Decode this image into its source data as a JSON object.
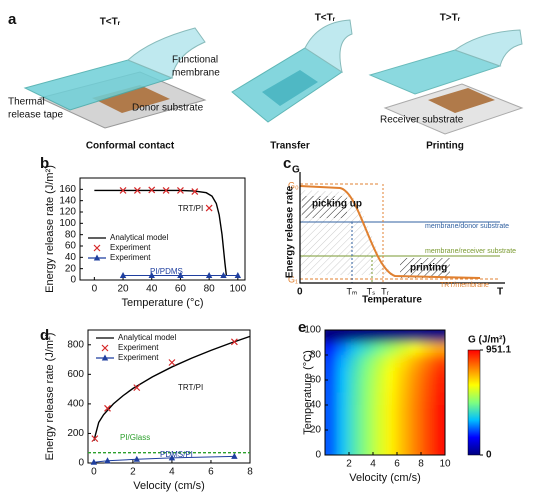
{
  "diagram_a": {
    "panel": "a",
    "labels": [
      "T<Tᵣ",
      "Functional",
      "membrane",
      "Thermal",
      "release tape",
      "Donor substrate",
      "Conformal contact",
      "T<Tᵣ",
      "Transfer",
      "T>Tᵣ",
      "Receiver substrate",
      "Printing"
    ]
  },
  "diagram_c": {
    "panel": "c",
    "labels": [
      "G",
      "G₀",
      "G₁",
      "Energy release rate",
      "Temperature",
      "0",
      "T",
      "Tₘ",
      "Tₛ",
      "Tᵣ",
      "picking up",
      "printing",
      "membrane/donor substrate",
      "membrane/receiver substrate",
      "TRT/membrane"
    ]
  },
  "chart_data": [
    {
      "type": "line",
      "panel": "b",
      "xlabel": "Temperature (°c)",
      "ylabel": "Energy release rate (J/m²)",
      "xlim": [
        -10,
        105
      ],
      "xticks": [
        0,
        20,
        40,
        60,
        80,
        100
      ],
      "ylim": [
        0,
        180
      ],
      "yticks": [
        0,
        20,
        40,
        60,
        80,
        100,
        120,
        140,
        160
      ],
      "annotations": [
        "TRT/PI",
        "PI/PDMS"
      ],
      "series": [
        {
          "name": "Analytical model",
          "color": "#000000",
          "line": true,
          "marker": "none",
          "x": [
            0,
            20,
            40,
            60,
            70,
            78,
            82,
            85,
            87,
            89,
            91,
            92
          ],
          "values": [
            158,
            158,
            158,
            158,
            157,
            154,
            148,
            135,
            115,
            80,
            30,
            8
          ]
        },
        {
          "name": "Experiment",
          "color": "#d62728",
          "line": false,
          "marker": "x",
          "x": [
            20,
            30,
            40,
            50,
            60,
            70,
            80
          ],
          "values": [
            158,
            158,
            159,
            158,
            158,
            156,
            127
          ]
        },
        {
          "name": "Experiment",
          "color": "#1f3f9f",
          "line": true,
          "marker": "triangle",
          "x": [
            20,
            40,
            60,
            80,
            90,
            100
          ],
          "values": [
            8,
            8,
            8,
            8,
            8,
            8
          ]
        }
      ]
    },
    {
      "type": "line",
      "panel": "d",
      "xlabel": "Velocity (cm/s)",
      "ylabel": "Energy release rate (J/m²)",
      "xlim": [
        -0.3,
        8
      ],
      "xticks": [
        0,
        2,
        4,
        6,
        8
      ],
      "ylim": [
        0,
        900
      ],
      "yticks": [
        0,
        200,
        400,
        600,
        800
      ],
      "annotations": [
        "TRT/PI",
        "PI/Glass",
        "PDMS/PI"
      ],
      "series": [
        {
          "name": "Analytical model",
          "color": "#000000",
          "line": true,
          "marker": "none",
          "x": [
            0,
            0.25,
            0.5,
            1,
            1.5,
            2,
            3,
            4,
            5,
            6,
            7,
            8
          ],
          "values": [
            150,
            275,
            327,
            400,
            456,
            504,
            583,
            650,
            709,
            762,
            811,
            857
          ]
        },
        {
          "name": "Experiment",
          "color": "#d62728",
          "line": false,
          "marker": "x",
          "x": [
            0.05,
            0.7,
            2.2,
            4,
            7.2
          ],
          "values": [
            165,
            370,
            510,
            680,
            820
          ]
        },
        {
          "name": "Experiment",
          "color": "#1f3f9f",
          "line": true,
          "marker": "triangle",
          "x": [
            0,
            0.7,
            2.2,
            4,
            7.2
          ],
          "values": [
            5,
            15,
            25,
            35,
            45
          ]
        },
        {
          "color": "#2ca02c",
          "line": true,
          "dash": true,
          "marker": "none",
          "x": [
            -0.3,
            8
          ],
          "values": [
            70,
            70
          ]
        }
      ]
    },
    {
      "type": "heatmap",
      "panel": "e",
      "xlabel": "Velocity (cm/s)",
      "ylabel": "Temperature (°C)",
      "clabel": "G (J/m²)",
      "xlim": [
        0,
        10
      ],
      "xticks": [
        2,
        4,
        6,
        8,
        10
      ],
      "ylim": [
        0,
        100
      ],
      "yticks": [
        0,
        20,
        40,
        60,
        80,
        100
      ],
      "zlim": [
        0,
        951.1
      ],
      "cticks": [
        0,
        951.1
      ],
      "colormap": [
        "#00007f",
        "#0000ff",
        "#00bfff",
        "#7fff7f",
        "#ffff00",
        "#ff7f00",
        "#ff0000"
      ],
      "x": [
        0.5,
        1.5,
        2.5,
        3.5,
        4.5,
        5.5,
        6.5,
        7.5,
        8.5,
        9.5
      ],
      "y": [
        5,
        15,
        25,
        35,
        45,
        55,
        65,
        75,
        85,
        95
      ],
      "z": [
        [
          230,
          330,
          420,
          500,
          580,
          650,
          720,
          790,
          860,
          930
        ],
        [
          230,
          330,
          420,
          500,
          580,
          650,
          720,
          790,
          860,
          930
        ],
        [
          230,
          330,
          420,
          500,
          580,
          650,
          720,
          790,
          860,
          930
        ],
        [
          230,
          330,
          420,
          500,
          580,
          650,
          720,
          790,
          860,
          930
        ],
        [
          228,
          328,
          418,
          498,
          576,
          646,
          716,
          786,
          855,
          925
        ],
        [
          226,
          325,
          415,
          494,
          572,
          641,
          710,
          780,
          848,
          918
        ],
        [
          222,
          320,
          408,
          486,
          563,
          631,
          700,
          768,
          835,
          905
        ],
        [
          212,
          305,
          390,
          465,
          540,
          605,
          670,
          735,
          800,
          865
        ],
        [
          180,
          260,
          340,
          400,
          460,
          520,
          580,
          630,
          690,
          740
        ],
        [
          0,
          0,
          0,
          0,
          0,
          0,
          0,
          0,
          0,
          0
        ]
      ]
    }
  ]
}
